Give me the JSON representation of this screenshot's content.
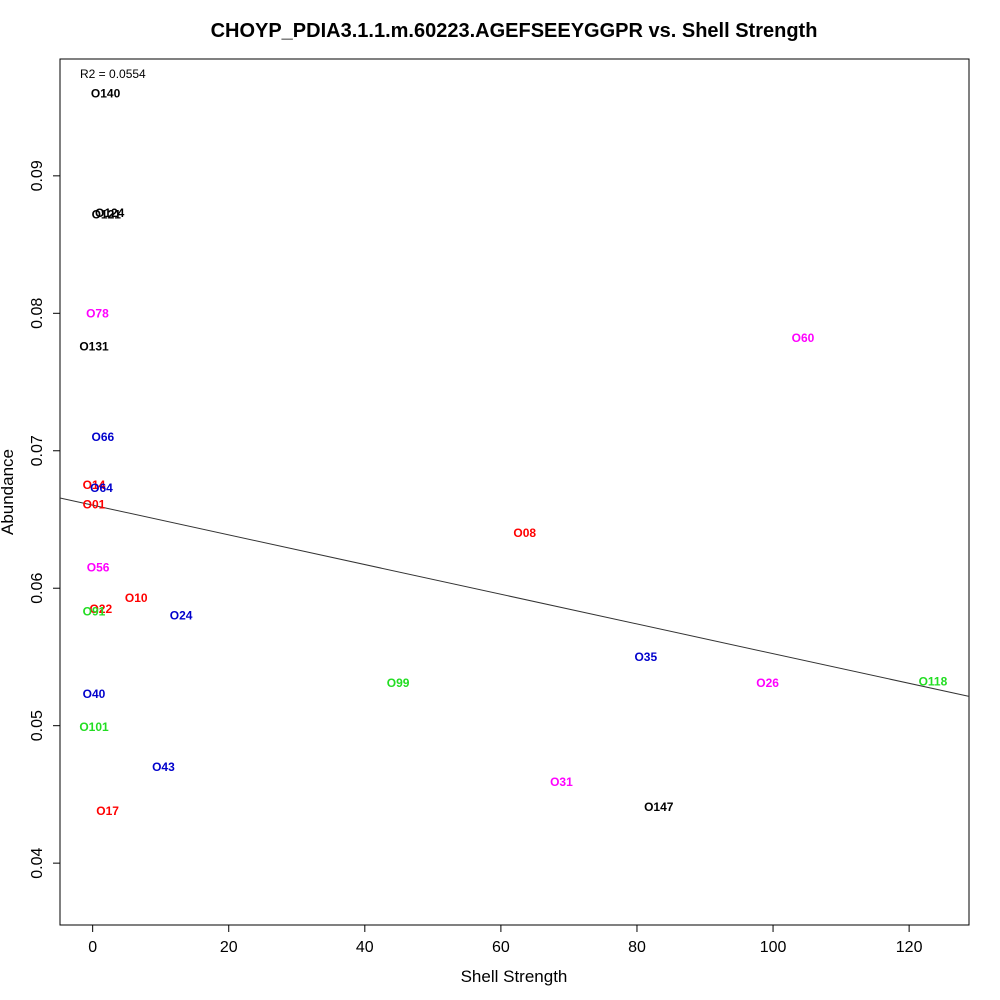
{
  "chart_data": {
    "type": "scatter",
    "title": "CHOYP_PDIA3.1.1.m.60223.AGEFSEEYGGPR vs. Shell Strength",
    "xlabel": "Shell Strength",
    "ylabel": "Abundance",
    "xlim": [
      -4.8,
      128.8
    ],
    "ylim": [
      0.0355,
      0.0985
    ],
    "xticks": [
      0,
      20,
      40,
      60,
      80,
      100,
      120
    ],
    "yticks": [
      0.04,
      0.05,
      0.06,
      0.07,
      0.08,
      0.09
    ],
    "annotation": "R2 = 0.0554",
    "grid": false,
    "colors": {
      "black": "#000000",
      "red": "#ff0000",
      "blue": "#0000cc",
      "green": "#22dd22",
      "magenta": "#ff00ff"
    },
    "points": [
      {
        "label": "O140",
        "x": 1.9,
        "y": 0.096,
        "color": "black"
      },
      {
        "label": "O124",
        "x": 2.5,
        "y": 0.0873,
        "color": "black"
      },
      {
        "label": "O121",
        "x": 2.0,
        "y": 0.0872,
        "color": "black"
      },
      {
        "label": "O78",
        "x": 0.7,
        "y": 0.08,
        "color": "magenta"
      },
      {
        "label": "O131",
        "x": 0.2,
        "y": 0.0776,
        "color": "black"
      },
      {
        "label": "O66",
        "x": 1.5,
        "y": 0.071,
        "color": "blue"
      },
      {
        "label": "O14",
        "x": 0.2,
        "y": 0.0675,
        "color": "red"
      },
      {
        "label": "O64",
        "x": 1.3,
        "y": 0.0673,
        "color": "blue"
      },
      {
        "label": "O01",
        "x": 0.2,
        "y": 0.0661,
        "color": "red"
      },
      {
        "label": "O56",
        "x": 0.8,
        "y": 0.0615,
        "color": "magenta"
      },
      {
        "label": "O22",
        "x": 1.2,
        "y": 0.0585,
        "color": "red"
      },
      {
        "label": "O91",
        "x": 0.2,
        "y": 0.0583,
        "color": "green"
      },
      {
        "label": "O10",
        "x": 6.4,
        "y": 0.0593,
        "color": "red"
      },
      {
        "label": "O24",
        "x": 13.0,
        "y": 0.058,
        "color": "blue"
      },
      {
        "label": "O40",
        "x": 0.2,
        "y": 0.0523,
        "color": "blue"
      },
      {
        "label": "O101",
        "x": 0.2,
        "y": 0.0499,
        "color": "green"
      },
      {
        "label": "O43",
        "x": 10.4,
        "y": 0.047,
        "color": "blue"
      },
      {
        "label": "O17",
        "x": 2.2,
        "y": 0.0438,
        "color": "red"
      },
      {
        "label": "O08",
        "x": 63.5,
        "y": 0.064,
        "color": "red"
      },
      {
        "label": "O99",
        "x": 44.9,
        "y": 0.0531,
        "color": "green"
      },
      {
        "label": "O35",
        "x": 81.3,
        "y": 0.055,
        "color": "blue"
      },
      {
        "label": "O31",
        "x": 68.9,
        "y": 0.0459,
        "color": "magenta"
      },
      {
        "label": "O147",
        "x": 83.2,
        "y": 0.0441,
        "color": "black"
      },
      {
        "label": "O26",
        "x": 99.2,
        "y": 0.0531,
        "color": "magenta"
      },
      {
        "label": "O60",
        "x": 104.4,
        "y": 0.0782,
        "color": "magenta"
      },
      {
        "label": "O118",
        "x": 123.5,
        "y": 0.0532,
        "color": "green"
      }
    ],
    "fit_line": {
      "x": [
        -4.8,
        128.8
      ],
      "y": [
        0.06656,
        0.05213
      ]
    }
  }
}
